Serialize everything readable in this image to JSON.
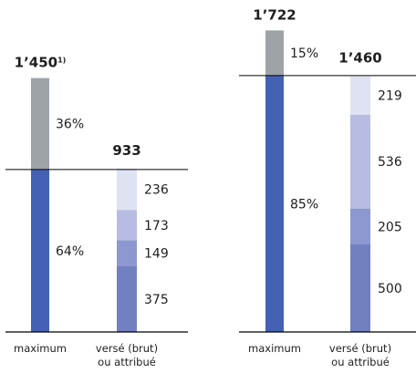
{
  "colors": {
    "dark_blue": "#4461b3",
    "gray": "#9ea3a8",
    "stack_1": "#7280c2",
    "stack_2": "#8c98cf",
    "stack_3": "#b7bde2",
    "stack_4": "#dfe2f2",
    "line": "#000000",
    "text": "#1e1e1e"
  },
  "chart_data": [
    {
      "type": "bar",
      "categories": [
        "maximum",
        "versé (brut)\nou attribué"
      ],
      "maximum": {
        "total_label": "1’450",
        "footnote": "1)",
        "segments": [
          {
            "label": "64%",
            "value": 928
          },
          {
            "label": "36%",
            "value": 522
          }
        ]
      },
      "paid": {
        "total_label": "933",
        "segments": [
          {
            "label": "375",
            "value": 375
          },
          {
            "label": "149",
            "value": 149
          },
          {
            "label": "173",
            "value": 173
          },
          {
            "label": "236",
            "value": 236
          }
        ]
      },
      "ylim": [
        0,
        1800
      ]
    },
    {
      "type": "bar",
      "categories": [
        "maximum",
        "versé (brut)\nou attribué"
      ],
      "maximum": {
        "total_label": "1’722",
        "segments": [
          {
            "label": "85%",
            "value": 1464
          },
          {
            "label": "15%",
            "value": 258
          }
        ]
      },
      "paid": {
        "total_label": "1’460",
        "segments": [
          {
            "label": "500",
            "value": 500
          },
          {
            "label": "205",
            "value": 205
          },
          {
            "label": "536",
            "value": 536
          },
          {
            "label": "219",
            "value": 219
          }
        ]
      },
      "ylim": [
        0,
        1800
      ]
    }
  ]
}
